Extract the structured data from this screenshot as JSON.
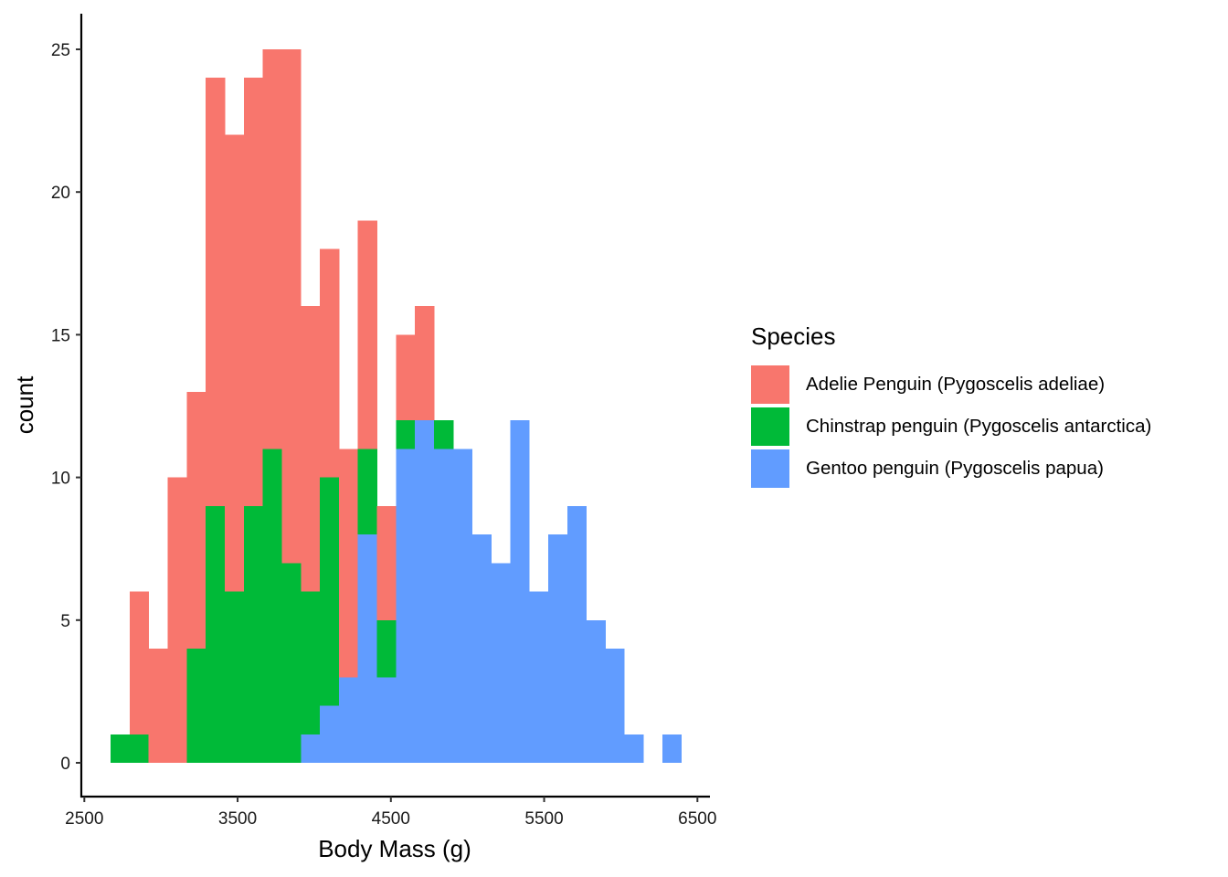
{
  "chart_data": {
    "type": "bar",
    "subtype": "stacked-histogram",
    "title": "",
    "xlabel": "Body Mass (g)",
    "ylabel": "count",
    "xlim": [
      2500,
      6500
    ],
    "ylim": [
      0,
      25
    ],
    "x_ticks": [
      2500,
      3500,
      4500,
      5500,
      6500
    ],
    "y_ticks": [
      0,
      5,
      10,
      15,
      20,
      25
    ],
    "grid": false,
    "bin_width": 124.14,
    "bin_centers": [
      2733,
      2857,
      2981,
      3105,
      3230,
      3354,
      3478,
      3602,
      3726,
      3850,
      3975,
      4099,
      4223,
      4347,
      4471,
      4595,
      4719,
      4844,
      4968,
      5092,
      5216,
      5340,
      5464,
      5588,
      5713,
      5837,
      5961,
      6085,
      6209,
      6333
    ],
    "legend_title": "Species",
    "legend_position": "right",
    "stack_order": [
      "Gentoo penguin (Pygoscelis papua)",
      "Chinstrap penguin (Pygoscelis antarctica)",
      "Adelie Penguin (Pygoscelis adeliae)"
    ],
    "series": [
      {
        "name": "Adelie Penguin (Pygoscelis adeliae)",
        "color": "#F8766D",
        "values": [
          0,
          5,
          4,
          10,
          9,
          15,
          16,
          15,
          14,
          18,
          10,
          8,
          8,
          8,
          4,
          3,
          4,
          0,
          0,
          0,
          0,
          0,
          0,
          0,
          0,
          0,
          0,
          0,
          0,
          0
        ]
      },
      {
        "name": "Chinstrap penguin (Pygoscelis antarctica)",
        "color": "#00BA38",
        "values": [
          1,
          1,
          0,
          0,
          4,
          9,
          6,
          9,
          11,
          7,
          5,
          8,
          0,
          3,
          2,
          1,
          0,
          1,
          0,
          0,
          0,
          0,
          0,
          0,
          0,
          0,
          0,
          0,
          0,
          0
        ]
      },
      {
        "name": "Gentoo penguin (Pygoscelis papua)",
        "color": "#619CFF",
        "values": [
          0,
          0,
          0,
          0,
          0,
          0,
          0,
          0,
          0,
          0,
          1,
          2,
          3,
          8,
          3,
          11,
          12,
          11,
          11,
          8,
          7,
          12,
          6,
          8,
          9,
          5,
          4,
          1,
          0,
          1
        ]
      }
    ]
  }
}
